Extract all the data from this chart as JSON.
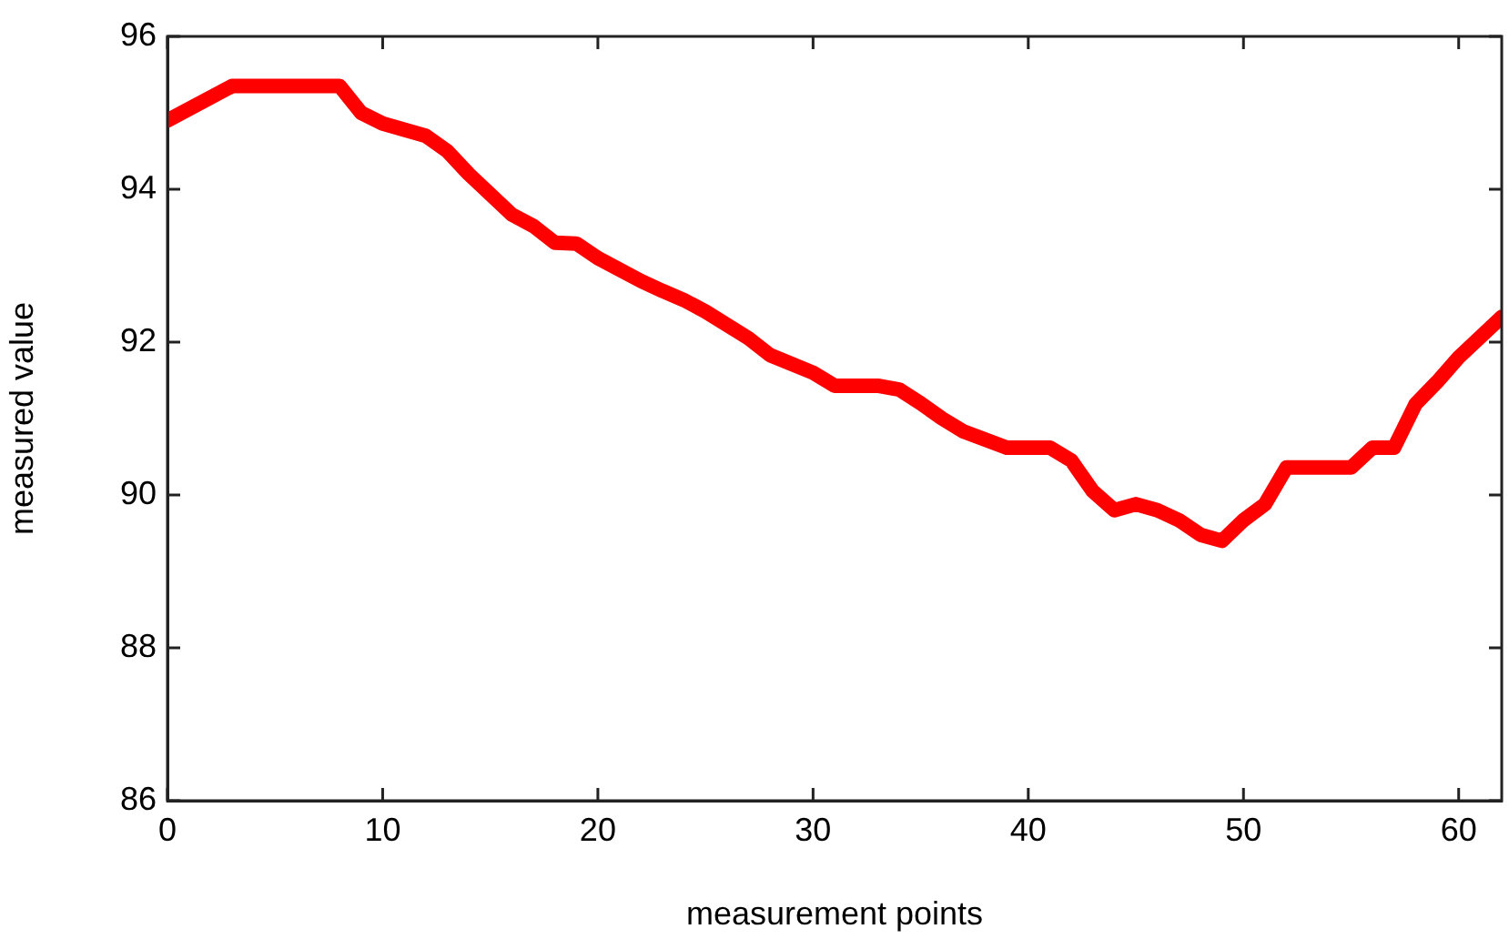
{
  "chart_data": {
    "type": "line",
    "xlabel": "measurement points",
    "ylabel": "measured value",
    "xlim": [
      0,
      62
    ],
    "xticks": [
      0,
      10,
      20,
      30,
      40,
      50,
      60
    ],
    "ylim": [
      86,
      96
    ],
    "yticks": [
      86,
      88,
      90,
      92,
      94,
      96
    ],
    "grid": false,
    "legend": false,
    "marker": "none",
    "line_style": "solid",
    "series": [
      {
        "color": "#ff0000",
        "x": [
          0,
          3,
          8,
          9,
          10,
          12,
          13,
          14,
          16,
          17,
          18,
          19,
          20,
          22,
          23,
          24,
          25,
          27,
          28,
          30,
          31,
          33,
          34,
          35,
          36,
          37,
          39,
          41,
          42,
          43,
          44,
          45,
          46,
          47,
          48,
          49,
          50,
          51,
          52,
          55,
          56,
          57,
          58,
          59,
          60,
          62
        ],
        "values": [
          94.9,
          95.35,
          95.35,
          95.0,
          94.86,
          94.7,
          94.5,
          94.2,
          93.67,
          93.52,
          93.3,
          93.29,
          93.1,
          92.8,
          92.67,
          92.55,
          92.4,
          92.05,
          91.83,
          91.6,
          91.43,
          91.43,
          91.38,
          91.2,
          91.0,
          90.83,
          90.62,
          90.62,
          90.45,
          90.05,
          89.8,
          89.88,
          89.8,
          89.67,
          89.48,
          89.4,
          89.67,
          89.88,
          90.36,
          90.36,
          90.62,
          90.62,
          91.19,
          91.48,
          91.8,
          92.33
        ]
      }
    ]
  }
}
